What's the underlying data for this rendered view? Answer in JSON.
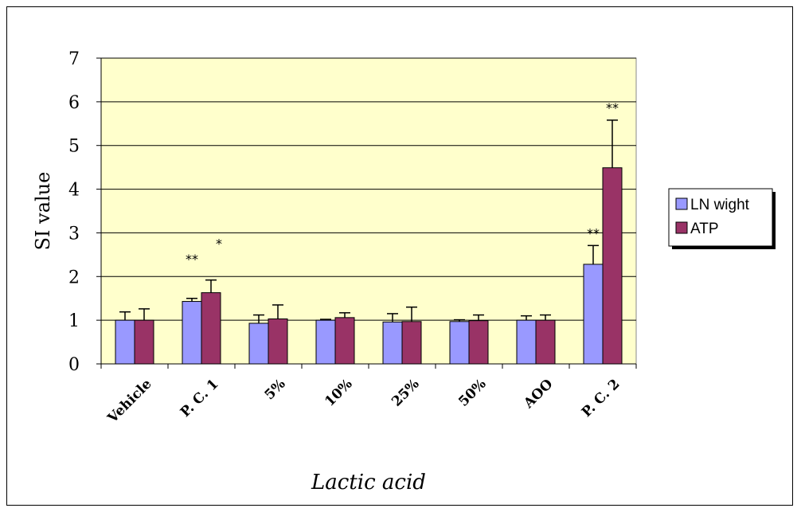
{
  "chart_data": {
    "type": "bar",
    "title": "",
    "xlabel": "Lactic acid",
    "ylabel": "SI value",
    "ylim": [
      0,
      7
    ],
    "yticks": [
      0,
      1,
      2,
      3,
      4,
      5,
      6,
      7
    ],
    "grid": true,
    "legend_position": "right",
    "plot_background": "#ffffcc",
    "categories": [
      "Vehicle",
      "P. C. 1",
      "5%",
      "10%",
      "25%",
      "50%",
      "AOO",
      "P. C. 2"
    ],
    "series": [
      {
        "name": "LN wight",
        "color": "#9999ff",
        "values": [
          1.0,
          1.43,
          0.93,
          1.0,
          0.96,
          0.97,
          1.0,
          2.28
        ],
        "errors": [
          0.19,
          0.07,
          0.19,
          0.02,
          0.19,
          0.04,
          0.1,
          0.43
        ],
        "annotations": [
          "",
          "**",
          "",
          "",
          "",
          "",
          "",
          "**"
        ]
      },
      {
        "name": "ATP",
        "color": "#993366",
        "values": [
          1.0,
          1.63,
          1.03,
          1.06,
          0.97,
          0.99,
          1.0,
          4.49
        ],
        "errors": [
          0.26,
          0.29,
          0.32,
          0.11,
          0.33,
          0.13,
          0.12,
          1.09
        ],
        "annotations": [
          "",
          "*",
          "",
          "",
          "",
          "",
          "",
          "**"
        ]
      }
    ]
  }
}
